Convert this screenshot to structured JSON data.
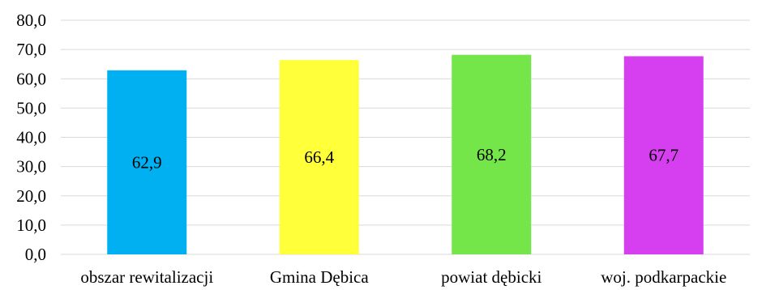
{
  "chart_data": {
    "type": "bar",
    "categories": [
      "obszar rewitalizacji",
      "Gmina Dębica",
      "powiat dębicki",
      "woj. podkarpackie"
    ],
    "values": [
      62.9,
      66.4,
      68.2,
      67.7
    ],
    "value_labels": [
      "62,9",
      "66,4",
      "68,2",
      "67,7"
    ],
    "colors": [
      "#00b0f0",
      "#ffff3a",
      "#75e64a",
      "#d63ff0"
    ],
    "yticks": [
      "0,0",
      "10,0",
      "20,0",
      "30,0",
      "40,0",
      "50,0",
      "60,0",
      "70,0",
      "80,0"
    ],
    "ylim": [
      0,
      80
    ],
    "ystep": 10,
    "grid": true,
    "title": "",
    "xlabel": "",
    "ylabel": ""
  }
}
